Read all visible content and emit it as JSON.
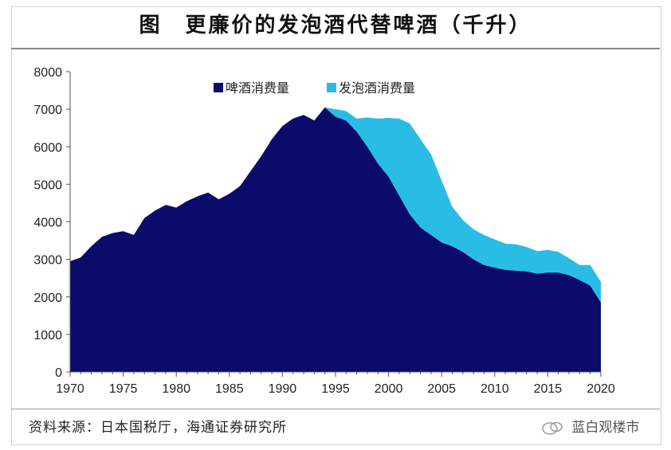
{
  "title": "图　更廉价的发泡酒代替啤酒（千升）",
  "source": "资料来源：日本国税厅，海通证券研究所",
  "watermark": "蓝白观楼市",
  "chart_data": {
    "type": "area",
    "stacked": true,
    "legend_position": "top",
    "grid": false,
    "xlim": [
      1970,
      2020
    ],
    "ylim": [
      0,
      8000
    ],
    "x_ticks": [
      1970,
      1975,
      1980,
      1985,
      1990,
      1995,
      2000,
      2005,
      2010,
      2015,
      2020
    ],
    "y_ticks": [
      0,
      1000,
      2000,
      3000,
      4000,
      5000,
      6000,
      7000,
      8000
    ],
    "x": [
      1970,
      1971,
      1972,
      1973,
      1974,
      1975,
      1976,
      1977,
      1978,
      1979,
      1980,
      1981,
      1982,
      1983,
      1984,
      1985,
      1986,
      1987,
      1988,
      1989,
      1990,
      1991,
      1992,
      1993,
      1994,
      1995,
      1996,
      1997,
      1998,
      1999,
      2000,
      2001,
      2002,
      2003,
      2004,
      2005,
      2006,
      2007,
      2008,
      2009,
      2010,
      2011,
      2012,
      2013,
      2014,
      2015,
      2016,
      2017,
      2018,
      2019,
      2020
    ],
    "series": [
      {
        "name": "啤酒消费量",
        "color": "#0b0b6b",
        "values": [
          2950,
          3050,
          3350,
          3600,
          3700,
          3750,
          3650,
          4100,
          4300,
          4450,
          4380,
          4550,
          4680,
          4780,
          4600,
          4750,
          4950,
          5350,
          5750,
          6200,
          6550,
          6750,
          6850,
          6700,
          7050,
          6800,
          6700,
          6400,
          6000,
          5550,
          5200,
          4700,
          4200,
          3850,
          3650,
          3450,
          3350,
          3200,
          3000,
          2850,
          2780,
          2720,
          2700,
          2680,
          2620,
          2650,
          2650,
          2580,
          2450,
          2300,
          1850
        ]
      },
      {
        "name": "发泡酒消费量",
        "color": "#29bde6",
        "values": [
          0,
          0,
          0,
          0,
          0,
          0,
          0,
          0,
          0,
          0,
          0,
          0,
          0,
          0,
          0,
          0,
          0,
          0,
          0,
          0,
          0,
          0,
          0,
          0,
          0,
          200,
          250,
          350,
          780,
          1200,
          1570,
          2050,
          2420,
          2350,
          2150,
          1650,
          1050,
          850,
          800,
          800,
          750,
          700,
          700,
          650,
          600,
          600,
          550,
          450,
          400,
          550,
          550
        ]
      }
    ]
  }
}
